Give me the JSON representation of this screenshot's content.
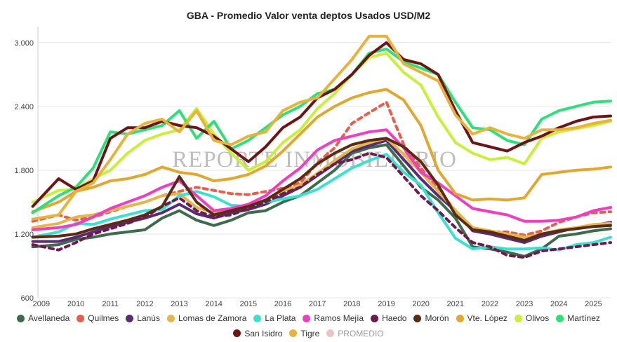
{
  "chart_data": {
    "type": "line",
    "title": "GBA - Promedio Valor venta deptos Usados USD/M2",
    "watermark": "REPORTE INMOBILIARIO",
    "xlabel": "",
    "ylabel": "",
    "xlim": [
      2009,
      2025.5
    ],
    "ylim": [
      600,
      3150
    ],
    "yticks": [
      600,
      1200,
      1800,
      2400,
      3000
    ],
    "ytick_labels": [
      "600",
      "1.200",
      "1.800",
      "2.400",
      "3.000"
    ],
    "xticks": [
      2009,
      2010,
      2011,
      2012,
      2013,
      2014,
      2015,
      2016,
      2017,
      2018,
      2019,
      2020,
      2021,
      2022,
      2023,
      2024,
      2025
    ],
    "xtick_labels": [
      "2009",
      "2010",
      "2011",
      "2012",
      "2013",
      "2014",
      "2015",
      "2016",
      "2017",
      "2018",
      "2019",
      "2020",
      "2021",
      "2022",
      "2023",
      "2024",
      "2025"
    ],
    "series": [
      {
        "name": "Avellaneda",
        "color": "#3e6b4e",
        "dash": false,
        "x": [
          2008.75,
          2009.5,
          2010,
          2010.5,
          2011,
          2011.5,
          2012,
          2012.5,
          2013,
          2013.5,
          2014,
          2014.5,
          2015,
          2015.5,
          2016,
          2016.5,
          2017,
          2017.5,
          2018,
          2018.5,
          2019,
          2019.5,
          2020,
          2020.5,
          2021,
          2021.5,
          2022,
          2022.5,
          2023,
          2023.5,
          2024,
          2024.5,
          2025,
          2025.5
        ],
        "y": [
          1080,
          1100,
          1150,
          1170,
          1200,
          1220,
          1240,
          1350,
          1420,
          1330,
          1280,
          1330,
          1400,
          1420,
          1500,
          1560,
          1680,
          1800,
          1960,
          2010,
          2040,
          1840,
          1640,
          1520,
          1350,
          1080,
          1060,
          1030,
          990,
          1060,
          1180,
          1200,
          1230,
          1250
        ]
      },
      {
        "name": "Quilmes",
        "color": "#e85d4b",
        "dash": true,
        "x": [
          2008.75,
          2009.5,
          2010,
          2010.5,
          2011,
          2011.5,
          2012,
          2012.5,
          2013,
          2013.5,
          2014,
          2014.5,
          2015,
          2015.5,
          2016,
          2016.5,
          2017,
          2017.5,
          2018,
          2018.5,
          2019,
          2019.5,
          2020,
          2020.5,
          2021,
          2021.5,
          2022,
          2022.5,
          2023,
          2023.5,
          2024,
          2024.5,
          2025,
          2025.5
        ],
        "y": [
          1320,
          1380,
          1330,
          1360,
          1410,
          1460,
          1500,
          1560,
          1600,
          1640,
          1610,
          1580,
          1570,
          1600,
          1630,
          1680,
          1870,
          2010,
          2240,
          2340,
          2440,
          2040,
          1820,
          1620,
          1420,
          1260,
          1220,
          1220,
          1190,
          1230,
          1310,
          1360,
          1400,
          1410
        ]
      },
      {
        "name": "Lanús",
        "color": "#5a2a72",
        "dash": false,
        "x": [
          2008.75,
          2009.5,
          2010,
          2010.5,
          2011,
          2011.5,
          2012,
          2012.5,
          2013,
          2013.5,
          2014,
          2014.5,
          2015,
          2015.5,
          2016,
          2016.5,
          2017,
          2017.5,
          2018,
          2018.5,
          2019,
          2019.5,
          2020,
          2020.5,
          2021,
          2021.5,
          2022,
          2022.5,
          2023,
          2023.5,
          2024,
          2024.5,
          2025,
          2025.5
        ],
        "y": [
          1130,
          1130,
          1170,
          1220,
          1270,
          1310,
          1350,
          1400,
          1480,
          1390,
          1350,
          1400,
          1430,
          1480,
          1560,
          1640,
          1750,
          1860,
          1980,
          2030,
          2080,
          1900,
          1720,
          1560,
          1420,
          1230,
          1200,
          1160,
          1120,
          1180,
          1220,
          1260,
          1280,
          1310
        ]
      },
      {
        "name": "Lomas de Zamora",
        "color": "#e3b74a",
        "dash": false,
        "x": [
          2008.75,
          2009.5,
          2010,
          2010.5,
          2011,
          2011.5,
          2012,
          2012.5,
          2013,
          2013.5,
          2014,
          2014.5,
          2015,
          2015.5,
          2016,
          2016.5,
          2017,
          2017.5,
          2018,
          2018.5,
          2019,
          2019.5,
          2020,
          2020.5,
          2021,
          2021.5,
          2022,
          2022.5,
          2023,
          2023.5,
          2024,
          2024.5,
          2025,
          2025.5
        ],
        "y": [
          1260,
          1300,
          1360,
          1380,
          1420,
          1460,
          1500,
          1560,
          1580,
          1450,
          1400,
          1430,
          1470,
          1520,
          1600,
          1660,
          1770,
          1890,
          2000,
          2060,
          2100,
          1950,
          1780,
          1600,
          1420,
          1260,
          1230,
          1200,
          1170,
          1200,
          1240,
          1260,
          1290,
          1300
        ]
      },
      {
        "name": "La Plata",
        "color": "#3de0d0",
        "dash": false,
        "x": [
          2008.75,
          2009.5,
          2010,
          2010.5,
          2011,
          2011.5,
          2012,
          2012.5,
          2013,
          2013.5,
          2014,
          2014.5,
          2015,
          2015.5,
          2016,
          2016.5,
          2017,
          2017.5,
          2018,
          2018.5,
          2019,
          2019.5,
          2020,
          2020.5,
          2021,
          2021.5,
          2022,
          2022.5,
          2023,
          2023.5,
          2024,
          2024.5,
          2025,
          2025.5
        ],
        "y": [
          1170,
          1220,
          1300,
          1290,
          1340,
          1380,
          1420,
          1430,
          1560,
          1600,
          1550,
          1470,
          1460,
          1500,
          1530,
          1560,
          1620,
          1720,
          1820,
          1890,
          1950,
          1780,
          1660,
          1400,
          1160,
          1060,
          1080,
          1060,
          1060,
          1070,
          1050,
          1100,
          1120,
          1170
        ]
      },
      {
        "name": "Ramos Mejía",
        "color": "#f03ec0",
        "dash": false,
        "x": [
          2008.75,
          2009.5,
          2010,
          2010.5,
          2011,
          2011.5,
          2012,
          2012.5,
          2013,
          2013.5,
          2014,
          2014.5,
          2015,
          2015.5,
          2016,
          2016.5,
          2017,
          2017.5,
          2018,
          2018.5,
          2019,
          2019.5,
          2020,
          2020.5,
          2021,
          2021.5,
          2022,
          2022.5,
          2023,
          2023.5,
          2024,
          2024.5,
          2025,
          2025.5
        ],
        "y": [
          1240,
          1260,
          1290,
          1360,
          1440,
          1500,
          1560,
          1640,
          1700,
          1560,
          1420,
          1440,
          1480,
          1560,
          1700,
          1820,
          1990,
          2080,
          2120,
          2160,
          2180,
          2010,
          1780,
          1680,
          1560,
          1440,
          1410,
          1380,
          1320,
          1320,
          1330,
          1360,
          1420,
          1450
        ]
      },
      {
        "name": "Haedo",
        "color": "#6e1a4e",
        "dash": true,
        "x": [
          2008.75,
          2009.5,
          2010,
          2010.5,
          2011,
          2011.5,
          2012,
          2012.5,
          2013,
          2013.5,
          2014,
          2014.5,
          2015,
          2015.5,
          2016,
          2016.5,
          2017,
          2017.5,
          2018,
          2018.5,
          2019,
          2019.5,
          2020,
          2020.5,
          2021,
          2021.5,
          2022,
          2022.5,
          2023,
          2023.5,
          2024,
          2024.5,
          2025,
          2025.5
        ],
        "y": [
          1100,
          1050,
          1120,
          1200,
          1250,
          1300,
          1360,
          1460,
          1540,
          1420,
          1360,
          1380,
          1440,
          1500,
          1580,
          1640,
          1760,
          1860,
          1900,
          1960,
          1920,
          1740,
          1560,
          1420,
          1260,
          1120,
          1080,
          1000,
          980,
          1040,
          1060,
          1080,
          1100,
          1120
        ]
      },
      {
        "name": "Morón",
        "color": "#5a2a14",
        "dash": false,
        "x": [
          2008.75,
          2009.5,
          2010,
          2010.5,
          2011,
          2011.5,
          2012,
          2012.5,
          2013,
          2013.5,
          2014,
          2014.5,
          2015,
          2015.5,
          2016,
          2016.5,
          2017,
          2017.5,
          2018,
          2018.5,
          2019,
          2019.5,
          2020,
          2020.5,
          2021,
          2021.5,
          2022,
          2022.5,
          2023,
          2023.5,
          2024,
          2024.5,
          2025,
          2025.5
        ],
        "y": [
          1170,
          1180,
          1200,
          1250,
          1290,
          1330,
          1380,
          1460,
          1740,
          1500,
          1380,
          1420,
          1460,
          1520,
          1620,
          1720,
          1860,
          1960,
          2040,
          2080,
          2100,
          2020,
          1880,
          1660,
          1380,
          1240,
          1220,
          1180,
          1140,
          1200,
          1230,
          1250,
          1270,
          1280
        ]
      },
      {
        "name": "Vte. López",
        "color": "#e0a830",
        "dash": false,
        "x": [
          2008.75,
          2009.5,
          2010,
          2010.5,
          2011,
          2011.5,
          2012,
          2012.5,
          2013,
          2013.5,
          2014,
          2014.5,
          2015,
          2015.5,
          2016,
          2016.5,
          2017,
          2017.5,
          2018,
          2018.5,
          2019,
          2019.5,
          2020,
          2020.5,
          2021,
          2021.5,
          2022,
          2022.5,
          2023,
          2023.5,
          2024,
          2024.5,
          2025,
          2025.5
        ],
        "y": [
          1410,
          1500,
          1600,
          1640,
          1700,
          1720,
          1760,
          1830,
          1780,
          1760,
          1700,
          1720,
          1760,
          1840,
          1980,
          2140,
          2300,
          2400,
          2480,
          2530,
          2560,
          2460,
          2220,
          1800,
          1580,
          1520,
          1530,
          1520,
          1540,
          1760,
          1780,
          1800,
          1810,
          1830
        ]
      },
      {
        "name": "Olivos",
        "color": "#c8f03a",
        "dash": false,
        "x": [
          2008.75,
          2009.5,
          2010,
          2010.5,
          2011,
          2011.5,
          2012,
          2012.5,
          2013,
          2013.5,
          2014,
          2014.5,
          2015,
          2015.5,
          2016,
          2016.5,
          2017,
          2017.5,
          2018,
          2018.5,
          2019,
          2019.5,
          2020,
          2020.5,
          2021,
          2021.5,
          2022,
          2022.5,
          2023,
          2023.5,
          2024,
          2024.5,
          2025,
          2025.5
        ],
        "y": [
          1500,
          1610,
          1620,
          1720,
          1800,
          1960,
          2080,
          2140,
          2180,
          2380,
          2140,
          1960,
          1800,
          1880,
          2060,
          2180,
          2380,
          2520,
          2700,
          2860,
          2900,
          2720,
          2600,
          2300,
          2060,
          1960,
          1900,
          1920,
          1860,
          2100,
          2160,
          2190,
          2220,
          2260
        ]
      },
      {
        "name": "Martínez",
        "color": "#2fe07a",
        "dash": false,
        "x": [
          2008.75,
          2009.5,
          2010,
          2010.5,
          2011,
          2011.5,
          2012,
          2012.5,
          2013,
          2013.5,
          2014,
          2014.5,
          2015,
          2015.5,
          2016,
          2016.5,
          2017,
          2017.5,
          2018,
          2018.5,
          2019,
          2019.5,
          2020,
          2020.5,
          2021,
          2021.5,
          2022,
          2022.5,
          2023,
          2023.5,
          2024,
          2024.5,
          2025,
          2025.5
        ],
        "y": [
          1400,
          1560,
          1640,
          1820,
          2160,
          2140,
          2180,
          2220,
          2360,
          2100,
          2260,
          2000,
          2080,
          2200,
          2320,
          2400,
          2520,
          2560,
          2700,
          2900,
          2940,
          2820,
          2760,
          2700,
          2440,
          2200,
          2180,
          2080,
          2040,
          2280,
          2360,
          2400,
          2440,
          2450
        ]
      },
      {
        "name": "San Isidro",
        "color": "#6e1414",
        "dash": false,
        "x": [
          2008.75,
          2009.5,
          2010,
          2010.5,
          2011,
          2011.5,
          2012,
          2012.5,
          2013,
          2013.5,
          2014,
          2014.5,
          2015,
          2015.5,
          2016,
          2016.5,
          2017,
          2017.5,
          2018,
          2018.5,
          2019,
          2019.5,
          2020,
          2020.5,
          2021,
          2021.5,
          2022,
          2022.5,
          2023,
          2023.5,
          2024,
          2024.5,
          2025,
          2025.5
        ],
        "y": [
          1460,
          1720,
          1620,
          1700,
          2100,
          2200,
          2200,
          2260,
          2220,
          2200,
          2120,
          2000,
          1880,
          2020,
          2200,
          2300,
          2480,
          2560,
          2700,
          2880,
          3000,
          2840,
          2800,
          2700,
          2360,
          2060,
          2020,
          1980,
          2060,
          2120,
          2200,
          2260,
          2300,
          2310
        ]
      },
      {
        "name": "Tigre",
        "color": "#e7b33a",
        "dash": false,
        "x": [
          2008.75,
          2009.5,
          2010,
          2010.5,
          2011,
          2011.5,
          2012,
          2012.5,
          2013,
          2013.5,
          2014,
          2014.5,
          2015,
          2015.5,
          2016,
          2016.5,
          2017,
          2017.5,
          2018,
          2018.5,
          2019,
          2019.5,
          2020,
          2020.5,
          2021,
          2021.5,
          2022,
          2022.5,
          2023,
          2023.5,
          2024,
          2024.5,
          2025,
          2025.5
        ],
        "y": [
          1340,
          1380,
          1600,
          1680,
          1900,
          2140,
          2240,
          2280,
          2160,
          2360,
          2080,
          2040,
          2120,
          2160,
          2360,
          2440,
          2480,
          2660,
          2840,
          3060,
          3060,
          2800,
          2720,
          2640,
          2320,
          2140,
          2200,
          2140,
          2100,
          2180,
          2180,
          2200,
          2240,
          2270
        ]
      },
      {
        "name": "PROMEDIO",
        "color": "#e8c4c4",
        "dash": false,
        "hidden": true,
        "x": [],
        "y": []
      }
    ]
  }
}
